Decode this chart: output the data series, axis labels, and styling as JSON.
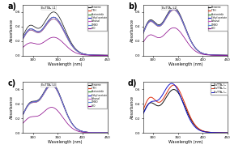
{
  "xlabel": "Wavelength (nm)",
  "ylabel": "Absorbance",
  "solvents_abc": [
    "Benzene",
    "TFH",
    "Acetonitrile",
    "Ethyl acetate",
    "Ethanol",
    "DMSO",
    "H₂O"
  ],
  "solvent_colors_abc": [
    "#111111",
    "#e03010",
    "#228B22",
    "#1515cc",
    "#cc55cc",
    "#5588dd",
    "#880088"
  ],
  "panel_d_labels": [
    "EuTTA₃ L₁",
    "EuTTA₃ L₂",
    "EuTTA₃ L₃"
  ],
  "panel_d_colors": [
    "#111111",
    "#e03010",
    "#1515cc"
  ],
  "inset_labels": [
    "EuTTA₃ L1",
    "EuTTA₃ L2",
    "EuTTA₃ L3"
  ],
  "panel_letters": [
    "a)",
    "b)",
    "c)",
    "d)"
  ],
  "bg_color": "#ffffff",
  "xlim": [
    280,
    450
  ],
  "ylim": [
    0.0,
    0.7
  ],
  "xticks": [
    300,
    350,
    400,
    450
  ],
  "yticks": [
    0.0,
    0.2,
    0.4,
    0.6
  ]
}
